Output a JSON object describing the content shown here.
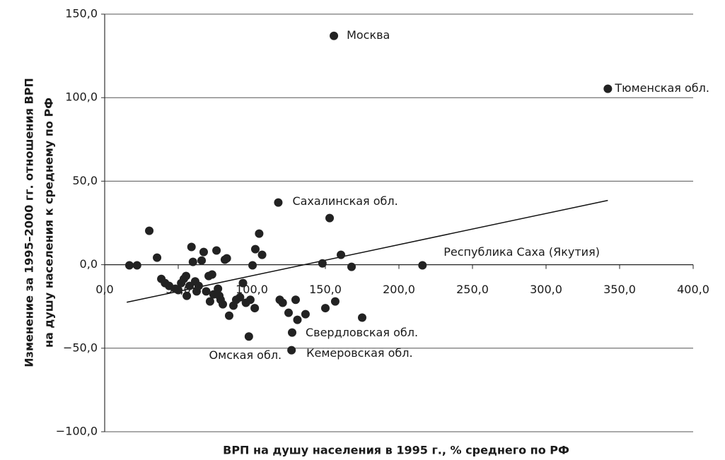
{
  "chart_data": {
    "type": "scatter",
    "y_label_lines": [
      "Изменение за 1995–2000 гг. отношения ВРП",
      "на душу населения к среднему по РФ"
    ],
    "x_label": "ВРП на душу населения в 1995 г., % среднего по РФ",
    "xlim": [
      0,
      400
    ],
    "ylim": [
      -100,
      150
    ],
    "xticks": [
      {
        "value": 0,
        "label": "0,0"
      },
      {
        "value": 50,
        "label": "50,0"
      },
      {
        "value": 100,
        "label": "100,0"
      },
      {
        "value": 150,
        "label": "150,0"
      },
      {
        "value": 200,
        "label": "200,0"
      },
      {
        "value": 250,
        "label": "250,0"
      },
      {
        "value": 300,
        "label": "300,0"
      },
      {
        "value": 350,
        "label": "350,0"
      },
      {
        "value": 400,
        "label": "400,0"
      }
    ],
    "yticks": [
      {
        "value": -100,
        "label": "−100,0"
      },
      {
        "value": -50,
        "label": "−50,0"
      },
      {
        "value": 0,
        "label": "0,0"
      },
      {
        "value": 50,
        "label": "50,0"
      },
      {
        "value": 100,
        "label": "100,0"
      },
      {
        "value": 150,
        "label": "150,0"
      }
    ],
    "grid": true,
    "color": "#222222",
    "x": [
      155.8,
      342,
      118,
      216,
      127.4,
      127,
      98,
      16.8,
      22,
      30.3,
      35.6,
      38.5,
      41,
      43.8,
      48,
      50,
      52,
      53.8,
      55.3,
      55.8,
      57.7,
      59,
      60,
      61.5,
      62.5,
      63.9,
      65.9,
      67.3,
      69,
      70.7,
      71.6,
      73,
      74,
      76,
      77,
      77.9,
      78.8,
      80.3,
      81.7,
      83,
      84.6,
      87.5,
      89.4,
      92,
      94,
      96,
      99,
      100.5,
      102,
      102.4,
      105,
      107,
      119,
      121,
      125,
      129.8,
      131,
      136.5,
      148,
      150,
      152.9,
      156.7,
      160.6,
      167.8,
      175
    ],
    "y": [
      137,
      105.3,
      37.2,
      -0.4,
      -40.6,
      -51.2,
      -43,
      -0.4,
      -0.4,
      20.3,
      4.2,
      -8.5,
      -11,
      -12.7,
      -14.4,
      -15.2,
      -11,
      -8.5,
      -6.8,
      -18.6,
      -12.7,
      10.6,
      1.7,
      -10,
      -16,
      -12.7,
      2.5,
      7.6,
      -16,
      -6.8,
      -22,
      -5.9,
      -17.8,
      8.5,
      -14.4,
      -18.6,
      -21,
      -23.7,
      3,
      3.8,
      -30.5,
      -24.5,
      -21,
      -19.5,
      -11,
      -22.8,
      -21,
      -0.4,
      -26,
      9.3,
      18.6,
      5.9,
      -21,
      -22.8,
      -28.8,
      -21,
      -33,
      -29.6,
      0.8,
      -26,
      27.9,
      -22,
      5.9,
      -1.3,
      -31.7
    ],
    "labels": [
      "Москва",
      "Тюменская обл.",
      "Сахалинская обл.",
      "Республика Саха (Якутия)",
      "Свердловская обл.",
      "Кемеровская обл.",
      "Омская обл."
    ],
    "trendline": {
      "x": [
        15,
        342
      ],
      "y": [
        -22.5,
        38.5
      ]
    }
  }
}
